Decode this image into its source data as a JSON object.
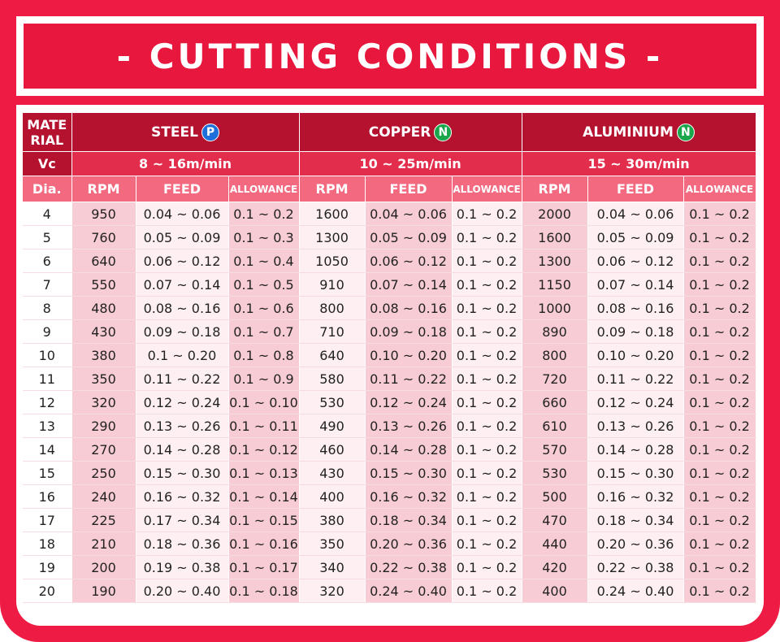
{
  "title": "- CUTTING CONDITIONS -",
  "header": {
    "material_label": "MATE RIAL",
    "material_line1": "MATE",
    "material_line2": "RIAL",
    "vc_label": "Vc",
    "dia_label": "Dia.",
    "materials": [
      {
        "name": "STEEL",
        "badge": "P",
        "badge_color": "#1e6fd9",
        "vc": "8 ~ 16m/min"
      },
      {
        "name": "COPPER",
        "badge": "N",
        "badge_color": "#1aa64a",
        "vc": "10 ~ 25m/min"
      },
      {
        "name": "ALUMINIUM",
        "badge": "N",
        "badge_color": "#1aa64a",
        "vc": "15 ~ 30m/min"
      }
    ],
    "sub_columns": [
      "RPM",
      "FEED",
      "ALLOWANCE"
    ]
  },
  "rows": [
    {
      "dia": "4",
      "steel": [
        "950",
        "0.04 ~ 0.06",
        "0.1 ~ 0.2"
      ],
      "copper": [
        "1600",
        "0.04 ~ 0.06",
        "0.1 ~ 0.2"
      ],
      "aluminium": [
        "2000",
        "0.04 ~ 0.06",
        "0.1 ~ 0.2"
      ]
    },
    {
      "dia": "5",
      "steel": [
        "760",
        "0.05 ~ 0.09",
        "0.1 ~ 0.3"
      ],
      "copper": [
        "1300",
        "0.05 ~ 0.09",
        "0.1 ~ 0.2"
      ],
      "aluminium": [
        "1600",
        "0.05 ~ 0.09",
        "0.1 ~ 0.2"
      ]
    },
    {
      "dia": "6",
      "steel": [
        "640",
        "0.06 ~ 0.12",
        "0.1 ~ 0.4"
      ],
      "copper": [
        "1050",
        "0.06 ~ 0.12",
        "0.1 ~ 0.2"
      ],
      "aluminium": [
        "1300",
        "0.06 ~ 0.12",
        "0.1 ~ 0.2"
      ]
    },
    {
      "dia": "7",
      "steel": [
        "550",
        "0.07 ~ 0.14",
        "0.1 ~ 0.5"
      ],
      "copper": [
        "910",
        "0.07 ~ 0.14",
        "0.1 ~ 0.2"
      ],
      "aluminium": [
        "1150",
        "0.07 ~ 0.14",
        "0.1 ~ 0.2"
      ]
    },
    {
      "dia": "8",
      "steel": [
        "480",
        "0.08 ~ 0.16",
        "0.1 ~ 0.6"
      ],
      "copper": [
        "800",
        "0.08 ~ 0.16",
        "0.1 ~ 0.2"
      ],
      "aluminium": [
        "1000",
        "0.08 ~ 0.16",
        "0.1 ~ 0.2"
      ]
    },
    {
      "dia": "9",
      "steel": [
        "430",
        "0.09 ~ 0.18",
        "0.1 ~ 0.7"
      ],
      "copper": [
        "710",
        "0.09 ~ 0.18",
        "0.1 ~ 0.2"
      ],
      "aluminium": [
        "890",
        "0.09 ~ 0.18",
        "0.1 ~ 0.2"
      ]
    },
    {
      "dia": "10",
      "steel": [
        "380",
        "0.1 ~ 0.20",
        "0.1 ~ 0.8"
      ],
      "copper": [
        "640",
        "0.10 ~ 0.20",
        "0.1 ~ 0.2"
      ],
      "aluminium": [
        "800",
        "0.10 ~ 0.20",
        "0.1 ~ 0.2"
      ]
    },
    {
      "dia": "11",
      "steel": [
        "350",
        "0.11 ~ 0.22",
        "0.1 ~ 0.9"
      ],
      "copper": [
        "580",
        "0.11 ~ 0.22",
        "0.1 ~ 0.2"
      ],
      "aluminium": [
        "720",
        "0.11 ~ 0.22",
        "0.1 ~ 0.2"
      ]
    },
    {
      "dia": "12",
      "steel": [
        "320",
        "0.12 ~ 0.24",
        "0.1 ~ 0.10"
      ],
      "copper": [
        "530",
        "0.12 ~ 0.24",
        "0.1 ~ 0.2"
      ],
      "aluminium": [
        "660",
        "0.12 ~ 0.24",
        "0.1 ~ 0.2"
      ]
    },
    {
      "dia": "13",
      "steel": [
        "290",
        "0.13 ~ 0.26",
        "0.1 ~ 0.11"
      ],
      "copper": [
        "490",
        "0.13 ~ 0.26",
        "0.1 ~ 0.2"
      ],
      "aluminium": [
        "610",
        "0.13 ~ 0.26",
        "0.1 ~ 0.2"
      ]
    },
    {
      "dia": "14",
      "steel": [
        "270",
        "0.14 ~ 0.28",
        "0.1 ~ 0.12"
      ],
      "copper": [
        "460",
        "0.14 ~ 0.28",
        "0.1 ~ 0.2"
      ],
      "aluminium": [
        "570",
        "0.14 ~ 0.28",
        "0.1 ~ 0.2"
      ]
    },
    {
      "dia": "15",
      "steel": [
        "250",
        "0.15 ~ 0.30",
        "0.1 ~ 0.13"
      ],
      "copper": [
        "430",
        "0.15 ~ 0.30",
        "0.1 ~ 0.2"
      ],
      "aluminium": [
        "530",
        "0.15 ~ 0.30",
        "0.1 ~ 0.2"
      ]
    },
    {
      "dia": "16",
      "steel": [
        "240",
        "0.16 ~ 0.32",
        "0.1 ~ 0.14"
      ],
      "copper": [
        "400",
        "0.16 ~ 0.32",
        "0.1 ~ 0.2"
      ],
      "aluminium": [
        "500",
        "0.16 ~ 0.32",
        "0.1 ~ 0.2"
      ]
    },
    {
      "dia": "17",
      "steel": [
        "225",
        "0.17 ~ 0.34",
        "0.1 ~ 0.15"
      ],
      "copper": [
        "380",
        "0.18 ~ 0.34",
        "0.1 ~ 0.2"
      ],
      "aluminium": [
        "470",
        "0.18 ~ 0.34",
        "0.1 ~ 0.2"
      ]
    },
    {
      "dia": "18",
      "steel": [
        "210",
        "0.18 ~ 0.36",
        "0.1 ~ 0.16"
      ],
      "copper": [
        "350",
        "0.20 ~ 0.36",
        "0.1 ~ 0.2"
      ],
      "aluminium": [
        "440",
        "0.20 ~ 0.36",
        "0.1 ~ 0.2"
      ]
    },
    {
      "dia": "19",
      "steel": [
        "200",
        "0.19 ~ 0.38",
        "0.1 ~ 0.17"
      ],
      "copper": [
        "340",
        "0.22 ~ 0.38",
        "0.1 ~ 0.2"
      ],
      "aluminium": [
        "420",
        "0.22 ~ 0.38",
        "0.1 ~ 0.2"
      ]
    },
    {
      "dia": "20",
      "steel": [
        "190",
        "0.20 ~ 0.40",
        "0.1 ~ 0.18"
      ],
      "copper": [
        "320",
        "0.24 ~ 0.40",
        "0.1 ~ 0.2"
      ],
      "aluminium": [
        "400",
        "0.24 ~ 0.40",
        "0.1 ~ 0.2"
      ]
    }
  ],
  "colors": {
    "frame": "#ee1c44",
    "header_dark": "#b5122f",
    "header_mid": "#e32d4c",
    "header_light": "#f36a80",
    "cell_pink": "#f8ccd4",
    "cell_light": "#fdeff2"
  }
}
